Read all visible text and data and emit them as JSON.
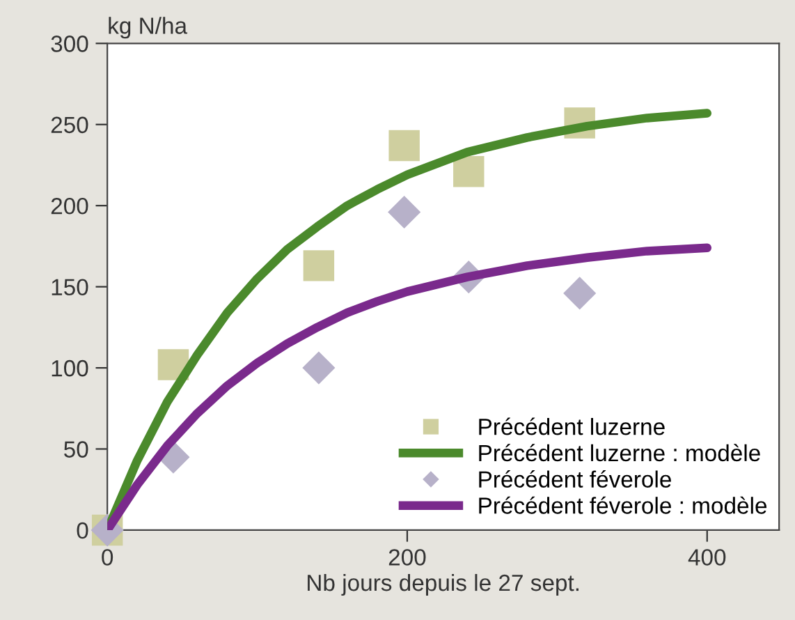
{
  "chart_data": {
    "type": "scatter",
    "ylabel": "kg N/ha",
    "xlabel": "Nb jours depuis le 27 sept.",
    "xlim": [
      0,
      448
    ],
    "xticks": [
      0,
      200,
      400
    ],
    "ylim": [
      0,
      300
    ],
    "yticks": [
      0,
      50,
      100,
      150,
      200,
      250,
      300
    ],
    "grid": false,
    "legend": "bottom right",
    "series": [
      {
        "name": "Précédent luzerne",
        "marker": "square",
        "color": "#cfcf9f",
        "x": [
          0,
          44,
          141,
          198,
          241,
          315
        ],
        "values": [
          0,
          102,
          163,
          237,
          221,
          251
        ]
      },
      {
        "name": "Précédent luzerne : modèle",
        "type": "line",
        "marker": "none",
        "line_style": "solid",
        "color": "#4b8a2c",
        "x": [
          0,
          20,
          40,
          60,
          80,
          100,
          120,
          140,
          160,
          180,
          200,
          240,
          280,
          320,
          360,
          400
        ],
        "values": [
          0,
          43,
          79,
          108,
          134,
          155,
          173,
          187,
          200,
          210,
          219,
          233,
          242,
          249,
          254,
          257
        ]
      },
      {
        "name": "Précédent féverole",
        "marker": "diamond",
        "color": "#b7b1c9",
        "x": [
          0,
          44,
          141,
          198,
          241,
          315
        ],
        "values": [
          0,
          45,
          100,
          196,
          156,
          146
        ]
      },
      {
        "name": "Précédent féverole : modèle",
        "type": "line",
        "marker": "none",
        "line_style": "solid",
        "color": "#7a2a8c",
        "x": [
          0,
          20,
          40,
          60,
          80,
          100,
          120,
          140,
          160,
          180,
          200,
          240,
          280,
          320,
          360,
          400
        ],
        "values": [
          0,
          28,
          52,
          72,
          89,
          103,
          115,
          125,
          134,
          141,
          147,
          156,
          163,
          168,
          172,
          174
        ]
      }
    ]
  }
}
